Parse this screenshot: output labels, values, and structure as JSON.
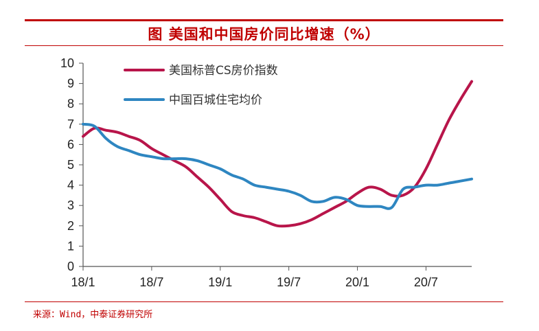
{
  "figure": {
    "title": "图 美国和中国房价同比增速（%）",
    "source": "来源：Wind，中泰证券研究所"
  },
  "colors": {
    "accent": "#c00000",
    "series_us": "#b8154a",
    "series_cn": "#2e86c1",
    "axis": "#555555"
  },
  "chart_data": {
    "type": "line",
    "title": "图 美国和中国房价同比增速（%）",
    "xlabel": "",
    "ylabel": "",
    "ylim": [
      0,
      10
    ],
    "yticks": [
      0,
      1,
      2,
      3,
      4,
      5,
      6,
      7,
      8,
      9,
      10
    ],
    "xlim": [
      0,
      34
    ],
    "xticks": [
      {
        "label": "18/1",
        "x": 0
      },
      {
        "label": "18/7",
        "x": 6
      },
      {
        "label": "19/1",
        "x": 12
      },
      {
        "label": "19/7",
        "x": 18
      },
      {
        "label": "20/1",
        "x": 24
      },
      {
        "label": "20/7",
        "x": 30
      }
    ],
    "legend_position": "top-left",
    "grid": false,
    "series": [
      {
        "name": "美国标普CS房价指数",
        "color": "#b8154a",
        "x": [
          0,
          1,
          2,
          3,
          4,
          5,
          6,
          7,
          8,
          9,
          10,
          11,
          12,
          13,
          14,
          15,
          16,
          17,
          18,
          19,
          20,
          21,
          22,
          23,
          24,
          25,
          26,
          27,
          28,
          29,
          30,
          31,
          32,
          33,
          34
        ],
        "values": [
          6.4,
          6.8,
          6.7,
          6.6,
          6.4,
          6.2,
          5.8,
          5.5,
          5.2,
          4.9,
          4.4,
          3.9,
          3.3,
          2.7,
          2.5,
          2.4,
          2.2,
          2.0,
          2.0,
          2.1,
          2.3,
          2.6,
          2.9,
          3.2,
          3.6,
          3.9,
          3.8,
          3.5,
          3.5,
          3.9,
          4.8,
          6.0,
          7.2,
          8.2,
          9.1
        ]
      },
      {
        "name": "中国百城住宅均价",
        "color": "#2e86c1",
        "x": [
          0,
          1,
          2,
          3,
          4,
          5,
          6,
          7,
          8,
          9,
          10,
          11,
          12,
          13,
          14,
          15,
          16,
          17,
          18,
          19,
          20,
          21,
          22,
          23,
          24,
          25,
          26,
          27,
          28,
          29,
          30,
          31,
          32,
          33,
          34
        ],
        "values": [
          7.0,
          6.9,
          6.3,
          5.9,
          5.7,
          5.5,
          5.4,
          5.3,
          5.3,
          5.3,
          5.2,
          5.0,
          4.8,
          4.5,
          4.3,
          4.0,
          3.9,
          3.8,
          3.7,
          3.5,
          3.2,
          3.2,
          3.4,
          3.3,
          3.0,
          2.95,
          2.95,
          2.9,
          3.8,
          3.9,
          4.0,
          4.0,
          4.1,
          4.2,
          4.3
        ]
      }
    ]
  }
}
